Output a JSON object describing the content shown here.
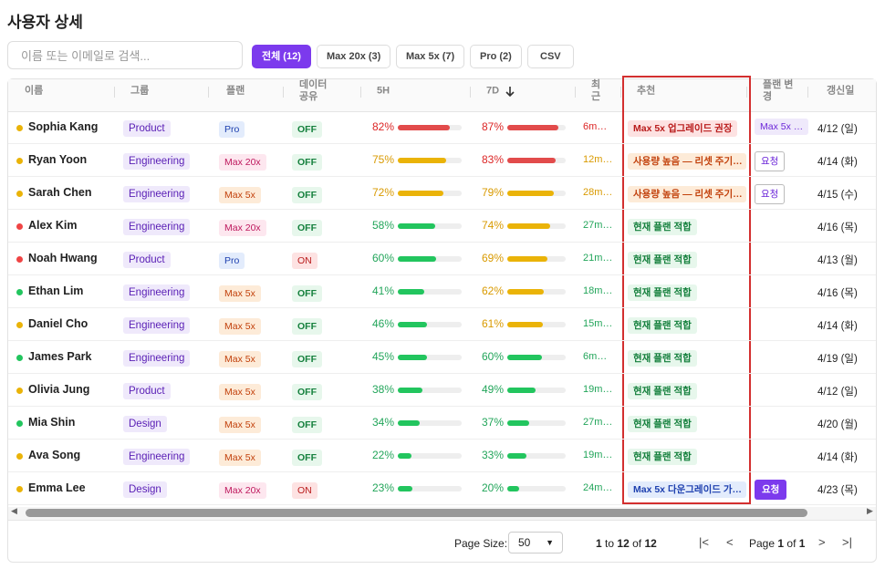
{
  "header": {
    "title": "사용자 상세"
  },
  "toolbar": {
    "search_placeholder": "이름 또는 이메일로 검색...",
    "filters": [
      {
        "label": "전체 (12)",
        "active": true
      },
      {
        "label": "Max 20x (3)",
        "active": false
      },
      {
        "label": "Max 5x (7)",
        "active": false
      },
      {
        "label": "Pro (2)",
        "active": false
      }
    ],
    "export": "CSV"
  },
  "table": {
    "columns": [
      "이름",
      "그룹",
      "플랜",
      "데이터 공유",
      "5H",
      "7D",
      "최근",
      "추천",
      "플랜 변경",
      "갱신일"
    ],
    "sort_column": 5,
    "highlight_column": 7,
    "rows": [
      {
        "name": "Sophia Kang",
        "dot": "#eab308",
        "group": "Product",
        "plan": "Pro",
        "plan_tone": "blue",
        "share": "OFF",
        "share_tone": "green",
        "h5": {
          "value": 82,
          "label": "82%"
        },
        "d7": {
          "value": 87,
          "label": "87%"
        },
        "recent": "6m…",
        "rec": "Max 5x 업그레이드 권장",
        "rec_tone": "red",
        "change": "Max 5x …",
        "change_style": "soft",
        "renew": "4/12 (일)"
      },
      {
        "name": "Ryan Yoon",
        "dot": "#eab308",
        "group": "Engineering",
        "plan": "Max 20x",
        "plan_tone": "pink",
        "share": "OFF",
        "share_tone": "green",
        "h5": {
          "value": 75,
          "label": "75%"
        },
        "d7": {
          "value": 83,
          "label": "83%"
        },
        "recent": "12m…",
        "rec": "사용량 높음 — 리셋 주기…",
        "rec_tone": "orange",
        "change": "요청",
        "change_style": "outline",
        "renew": "4/14 (화)"
      },
      {
        "name": "Sarah Chen",
        "dot": "#eab308",
        "group": "Engineering",
        "plan": "Max 5x",
        "plan_tone": "orange",
        "share": "OFF",
        "share_tone": "green",
        "h5": {
          "value": 72,
          "label": "72%"
        },
        "d7": {
          "value": 79,
          "label": "79%"
        },
        "recent": "28m…",
        "rec": "사용량 높음 — 리셋 주기…",
        "rec_tone": "orange",
        "change": "요청",
        "change_style": "outline",
        "renew": "4/15 (수)"
      },
      {
        "name": "Alex Kim",
        "dot": "#ef4444",
        "group": "Engineering",
        "plan": "Max 20x",
        "plan_tone": "pink",
        "share": "OFF",
        "share_tone": "green",
        "h5": {
          "value": 58,
          "label": "58%"
        },
        "d7": {
          "value": 74,
          "label": "74%"
        },
        "recent": "27m…",
        "rec": "현재 플랜 적합",
        "rec_tone": "green",
        "renew": "4/16 (목)"
      },
      {
        "name": "Noah Hwang",
        "dot": "#ef4444",
        "group": "Product",
        "plan": "Pro",
        "plan_tone": "blue",
        "share": "ON",
        "share_tone": "red",
        "h5": {
          "value": 60,
          "label": "60%"
        },
        "d7": {
          "value": 69,
          "label": "69%"
        },
        "recent": "21m…",
        "rec": "현재 플랜 적합",
        "rec_tone": "green",
        "renew": "4/13 (월)"
      },
      {
        "name": "Ethan Lim",
        "dot": "#22c55e",
        "group": "Engineering",
        "plan": "Max 5x",
        "plan_tone": "orange",
        "share": "OFF",
        "share_tone": "green",
        "h5": {
          "value": 41,
          "label": "41%"
        },
        "d7": {
          "value": 62,
          "label": "62%"
        },
        "recent": "18m…",
        "rec": "현재 플랜 적합",
        "rec_tone": "green",
        "renew": "4/16 (목)"
      },
      {
        "name": "Daniel Cho",
        "dot": "#eab308",
        "group": "Engineering",
        "plan": "Max 5x",
        "plan_tone": "orange",
        "share": "OFF",
        "share_tone": "green",
        "h5": {
          "value": 46,
          "label": "46%"
        },
        "d7": {
          "value": 61,
          "label": "61%"
        },
        "recent": "15m…",
        "rec": "현재 플랜 적합",
        "rec_tone": "green",
        "renew": "4/14 (화)"
      },
      {
        "name": "James Park",
        "dot": "#22c55e",
        "group": "Engineering",
        "plan": "Max 5x",
        "plan_tone": "orange",
        "share": "OFF",
        "share_tone": "green",
        "h5": {
          "value": 45,
          "label": "45%"
        },
        "d7": {
          "value": 60,
          "label": "60%"
        },
        "recent": "6m…",
        "rec": "현재 플랜 적합",
        "rec_tone": "green",
        "renew": "4/19 (일)"
      },
      {
        "name": "Olivia Jung",
        "dot": "#eab308",
        "group": "Product",
        "plan": "Max 5x",
        "plan_tone": "orange",
        "share": "OFF",
        "share_tone": "green",
        "h5": {
          "value": 38,
          "label": "38%"
        },
        "d7": {
          "value": 49,
          "label": "49%"
        },
        "recent": "19m…",
        "rec": "현재 플랜 적합",
        "rec_tone": "green",
        "renew": "4/12 (일)"
      },
      {
        "name": "Mia Shin",
        "dot": "#22c55e",
        "group": "Design",
        "plan": "Max 5x",
        "plan_tone": "orange",
        "share": "OFF",
        "share_tone": "green",
        "h5": {
          "value": 34,
          "label": "34%"
        },
        "d7": {
          "value": 37,
          "label": "37%"
        },
        "recent": "27m…",
        "rec": "현재 플랜 적합",
        "rec_tone": "green",
        "renew": "4/20 (월)"
      },
      {
        "name": "Ava Song",
        "dot": "#eab308",
        "group": "Engineering",
        "plan": "Max 5x",
        "plan_tone": "orange",
        "share": "OFF",
        "share_tone": "green",
        "h5": {
          "value": 22,
          "label": "22%"
        },
        "d7": {
          "value": 33,
          "label": "33%"
        },
        "recent": "19m…",
        "rec": "현재 플랜 적합",
        "rec_tone": "green",
        "renew": "4/14 (화)"
      },
      {
        "name": "Emma Lee",
        "dot": "#eab308",
        "group": "Design",
        "plan": "Max 20x",
        "plan_tone": "pink",
        "share": "ON",
        "share_tone": "red",
        "h5": {
          "value": 23,
          "label": "23%"
        },
        "d7": {
          "value": 20,
          "label": "20%"
        },
        "recent": "24m…",
        "rec": "Max 5x 다운그레이드 가…",
        "rec_tone": "blue",
        "change": "요청",
        "change_style": "filled",
        "renew": "4/23 (목)"
      }
    ]
  },
  "footer": {
    "page_size_label": "Page Size:",
    "page_size": "50",
    "range_from": "1",
    "range_to_word": "to",
    "range_to": "12",
    "range_of_word": "of",
    "range_total": "12",
    "page_word": "Page",
    "page": "1",
    "page_of_word": "of",
    "page_total": "1"
  }
}
